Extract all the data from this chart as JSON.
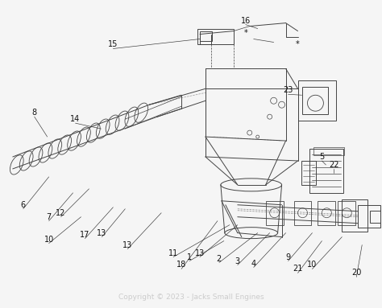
{
  "background_color": "#f5f5f5",
  "copyright_text": "Copyright © 2023 - Jacks Small Engines",
  "copyright_color": "#cccccc",
  "copyright_fontsize": 6.5,
  "line_color": "#444444",
  "label_color": "#111111",
  "label_fontsize": 7,
  "figsize": [
    4.74,
    3.83
  ],
  "dpi": 100,
  "img_extent": [
    0,
    474,
    0,
    383
  ]
}
